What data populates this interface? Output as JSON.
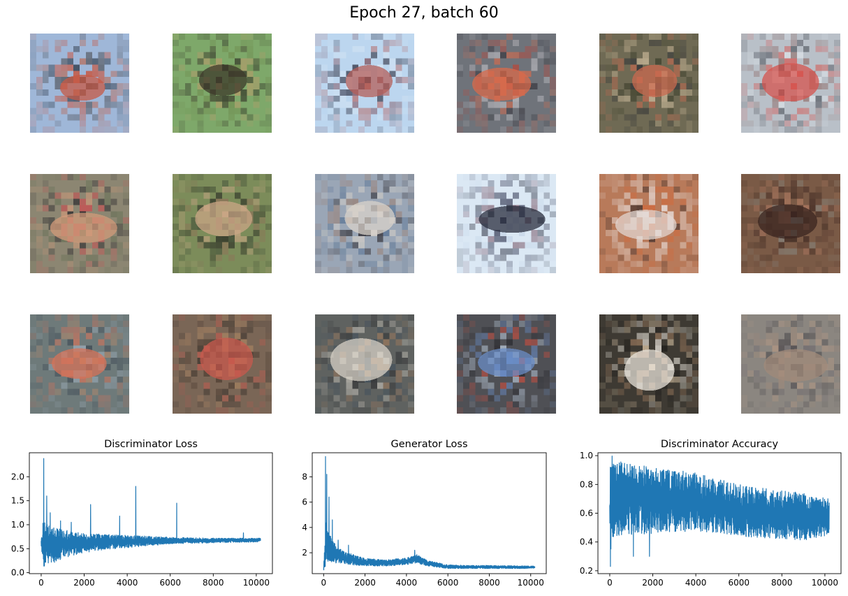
{
  "figure": {
    "title": "Epoch 27, batch 60"
  },
  "samples": {
    "rows": 3,
    "cols": 6,
    "tiles": [
      {
        "name": "sample-r1c1",
        "bg": "#9fb7d8",
        "blobs": [
          "#c65a45",
          "#2e3a48",
          "#b86a55",
          "#4b4b4f"
        ]
      },
      {
        "name": "sample-r1c2",
        "bg": "#7ea86a",
        "blobs": [
          "#3d3a2b",
          "#b79a6a",
          "#6f8b4e",
          "#2d2a22"
        ]
      },
      {
        "name": "sample-r1c3",
        "bg": "#bcd6ef",
        "blobs": [
          "#b45f5a",
          "#2b2a3a",
          "#d7e6f4",
          "#7b4a54"
        ]
      },
      {
        "name": "sample-r1c4",
        "bg": "#6f737a",
        "blobs": [
          "#d86a4b",
          "#b44a3e",
          "#2f2e35",
          "#c9c7cc"
        ]
      },
      {
        "name": "sample-r1c5",
        "bg": "#6f6a54",
        "blobs": [
          "#c8694f",
          "#2a2d33",
          "#d6c2a2",
          "#3b3e2b"
        ]
      },
      {
        "name": "sample-r1c6",
        "bg": "#b9c0c8",
        "blobs": [
          "#d6544f",
          "#2c2f38",
          "#e5ebf0",
          "#8e6a66"
        ]
      },
      {
        "name": "sample-r2c1",
        "bg": "#8c8672",
        "blobs": [
          "#d09a7a",
          "#2a2a2d",
          "#c85052",
          "#5d6b4f"
        ]
      },
      {
        "name": "sample-r2c2",
        "bg": "#7c8c5a",
        "blobs": [
          "#caa585",
          "#364131",
          "#8f6f58",
          "#232620"
        ]
      },
      {
        "name": "sample-r2c3",
        "bg": "#9aa6b6",
        "blobs": [
          "#d8d2c9",
          "#2d2a2f",
          "#9a7a6a",
          "#4e6b8e"
        ]
      },
      {
        "name": "sample-r2c4",
        "bg": "#dbe8f4",
        "blobs": [
          "#2b2f3f",
          "#7a5a6a",
          "#c6d6e8",
          "#3a3f58"
        ]
      },
      {
        "name": "sample-r2c5",
        "bg": "#b87a5a",
        "blobs": [
          "#e2d6d0",
          "#3a2c2a",
          "#d06a3e",
          "#f0f0f2"
        ]
      },
      {
        "name": "sample-r2c6",
        "bg": "#7a5a46",
        "blobs": [
          "#3b2620",
          "#b07a62",
          "#8a8c86",
          "#5c3f33"
        ]
      },
      {
        "name": "sample-r3c1",
        "bg": "#6e7a7a",
        "blobs": [
          "#d6735a",
          "#3f4a55",
          "#9aa9b6",
          "#b98a6a"
        ]
      },
      {
        "name": "sample-r3c2",
        "bg": "#7a6656",
        "blobs": [
          "#c85a4e",
          "#2f2a25",
          "#b38a65",
          "#4a3a2f"
        ]
      },
      {
        "name": "sample-r3c3",
        "bg": "#5f6260",
        "blobs": [
          "#d6d0c6",
          "#2a2b2e",
          "#a87d5c",
          "#3f4e5c"
        ]
      },
      {
        "name": "sample-r3c4",
        "bg": "#4f5055",
        "blobs": [
          "#6a8cc5",
          "#d34e3e",
          "#b7c5d6",
          "#2a2a2f"
        ]
      },
      {
        "name": "sample-r3c5",
        "bg": "#3e3a33",
        "blobs": [
          "#e7e2d8",
          "#1f1d1a",
          "#a58062",
          "#d8c2a3"
        ]
      },
      {
        "name": "sample-r3c6",
        "bg": "#8b8680",
        "blobs": [
          "#a08a7a",
          "#6f6b6e",
          "#b89a84",
          "#4d4a4c"
        ]
      }
    ]
  },
  "chart_data": [
    {
      "type": "line",
      "title": "Discriminator Loss",
      "xlabel": "",
      "ylabel": "",
      "xlim": [
        -550,
        10750
      ],
      "ylim": [
        -0.02,
        2.5
      ],
      "xticks": [
        0,
        2000,
        4000,
        6000,
        8000,
        10000
      ],
      "yticks": [
        0.0,
        0.5,
        1.0,
        1.5,
        2.0
      ],
      "ytick_labels": [
        "0.0",
        "0.5",
        "1.0",
        "1.5",
        "2.0"
      ],
      "color": "#1f77b4",
      "n": 10200,
      "envelope": {
        "x": [
          0,
          100,
          300,
          600,
          1000,
          2000,
          3000,
          4000,
          5000,
          6000,
          7000,
          8000,
          9000,
          10200
        ],
        "lo": [
          0.55,
          0.05,
          0.1,
          0.2,
          0.3,
          0.42,
          0.48,
          0.52,
          0.56,
          0.6,
          0.61,
          0.62,
          0.63,
          0.64
        ],
        "hi": [
          0.75,
          1.1,
          1.0,
          0.95,
          0.9,
          0.82,
          0.8,
          0.78,
          0.76,
          0.74,
          0.73,
          0.72,
          0.72,
          0.72
        ]
      },
      "spikes": [
        {
          "x": 120,
          "y": 2.38
        },
        {
          "x": 260,
          "y": 1.6
        },
        {
          "x": 420,
          "y": 1.25
        },
        {
          "x": 900,
          "y": 1.08
        },
        {
          "x": 1400,
          "y": 1.05
        },
        {
          "x": 2300,
          "y": 1.42
        },
        {
          "x": 3650,
          "y": 1.18
        },
        {
          "x": 4400,
          "y": 1.8
        },
        {
          "x": 6300,
          "y": 1.45
        },
        {
          "x": 9400,
          "y": 0.83
        }
      ]
    },
    {
      "type": "line",
      "title": "Generator Loss",
      "xlabel": "",
      "ylabel": "",
      "xlim": [
        -550,
        10750
      ],
      "ylim": [
        0.35,
        9.9
      ],
      "xticks": [
        0,
        2000,
        4000,
        6000,
        8000,
        10000
      ],
      "yticks": [
        2,
        4,
        6,
        8
      ],
      "ytick_labels": [
        "2",
        "4",
        "6",
        "8"
      ],
      "color": "#1f77b4",
      "n": 10200,
      "envelope": {
        "x": [
          0,
          100,
          300,
          600,
          1000,
          2000,
          3000,
          4000,
          4500,
          5000,
          6000,
          7000,
          8000,
          9000,
          10200
        ],
        "lo": [
          0.6,
          1.0,
          1.2,
          1.2,
          1.1,
          0.95,
          0.95,
          1.05,
          1.2,
          0.95,
          0.75,
          0.75,
          0.75,
          0.75,
          0.75
        ],
        "hi": [
          1.0,
          4.5,
          3.5,
          2.6,
          2.1,
          1.55,
          1.45,
          1.6,
          1.85,
          1.4,
          1.05,
          1.0,
          1.0,
          0.98,
          0.95
        ]
      },
      "spikes": [
        {
          "x": 90,
          "y": 9.6
        },
        {
          "x": 150,
          "y": 8.2
        },
        {
          "x": 260,
          "y": 6.4
        },
        {
          "x": 420,
          "y": 4.6
        },
        {
          "x": 700,
          "y": 3.0
        },
        {
          "x": 1200,
          "y": 2.6
        },
        {
          "x": 4400,
          "y": 2.2
        }
      ]
    },
    {
      "type": "line",
      "title": "Discriminator Accuracy",
      "xlabel": "",
      "ylabel": "",
      "xlim": [
        -550,
        10750
      ],
      "ylim": [
        0.18,
        1.02
      ],
      "xticks": [
        0,
        2000,
        4000,
        6000,
        8000,
        10000
      ],
      "yticks": [
        0.2,
        0.4,
        0.6,
        0.8,
        1.0
      ],
      "ytick_labels": [
        "0.2",
        "0.4",
        "0.6",
        "0.8",
        "1.0"
      ],
      "color": "#1f77b4",
      "n": 10200,
      "envelope": {
        "x": [
          0,
          100,
          500,
          1000,
          2000,
          3000,
          4000,
          5000,
          6000,
          7000,
          8000,
          9000,
          10200
        ],
        "lo": [
          0.25,
          0.42,
          0.45,
          0.45,
          0.45,
          0.47,
          0.47,
          0.46,
          0.44,
          0.43,
          0.42,
          0.41,
          0.45
        ],
        "hi": [
          0.98,
          1.0,
          0.96,
          0.94,
          0.92,
          0.9,
          0.88,
          0.84,
          0.8,
          0.78,
          0.76,
          0.74,
          0.7
        ]
      },
      "spikes": [
        {
          "x": 30,
          "y": 0.23
        },
        {
          "x": 1100,
          "y": 0.3
        },
        {
          "x": 1850,
          "y": 0.3
        }
      ]
    }
  ]
}
